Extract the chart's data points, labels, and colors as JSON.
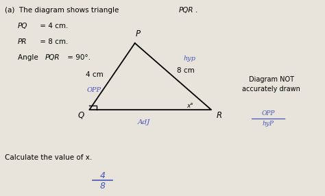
{
  "background_color": "#e8e4dc",
  "title_text_a": "(a)  The diagram shows triangle ",
  "title_text_b": "PQR",
  "info_line1_normal": "PQ",
  "info_line1_rest": " = 4 cm.",
  "info_line2_normal": "PR",
  "info_line2_rest": " = 8 cm.",
  "info_line3_normal": "Angle ",
  "info_line3_italic": "PQR",
  "info_line3_rest": " = 90°.",
  "P": [
    0.415,
    0.78
  ],
  "Q": [
    0.275,
    0.44
  ],
  "R": [
    0.65,
    0.44
  ],
  "label_P": "P",
  "label_Q": "Q",
  "label_R": "R",
  "PQ_label": "4 cm",
  "PR_label": "8 cm",
  "opp_label": "OPP",
  "hyp_label": "hyp",
  "adj_label": "AdJ",
  "angle_label": "x°",
  "diagram_not": "Diagram NOT",
  "accurately_drawn": "accurately drawn",
  "calculate_text": "Calculate the value of x.",
  "fraction_num": "4",
  "fraction_den": "8",
  "right_side_opp": "OPP",
  "right_side_hyp": "hyP",
  "sq_size": 0.022
}
